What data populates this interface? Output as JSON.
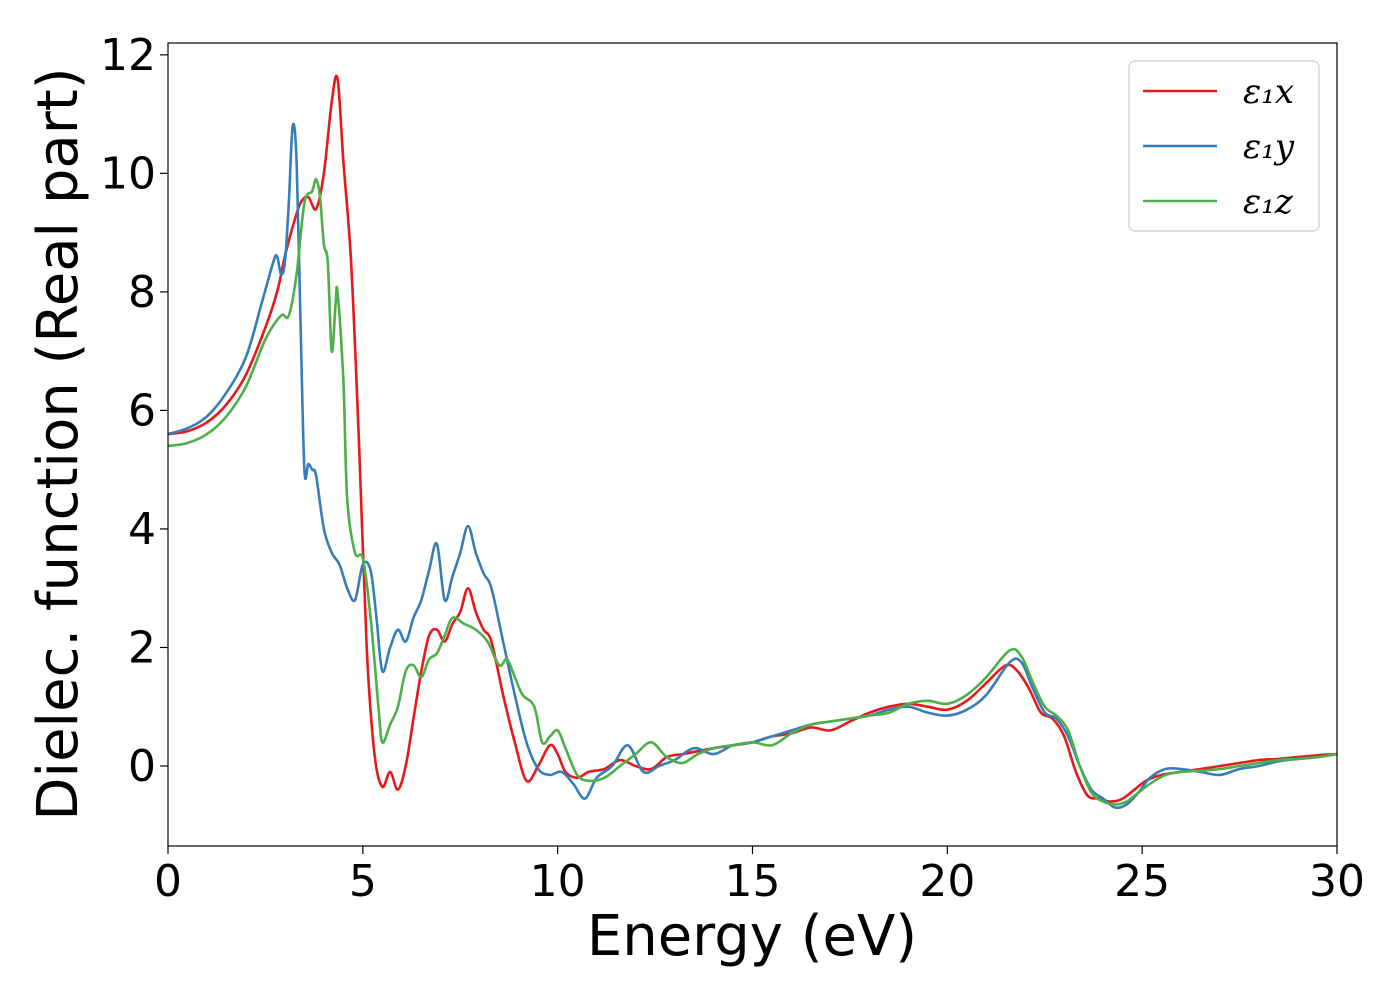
{
  "chart_data": {
    "type": "line",
    "xlabel": "Energy (eV)",
    "ylabel": "Dielec. function (Real part)",
    "xlim": [
      0,
      30
    ],
    "ylim": [
      -1.35,
      12.2
    ],
    "xticks": [
      0,
      5,
      10,
      15,
      20,
      25,
      30
    ],
    "yticks": [
      0,
      2,
      4,
      6,
      8,
      10,
      12
    ],
    "grid": false,
    "legend_position": "top-right",
    "series": [
      {
        "name": "ε₁x",
        "color": "#e41a1c",
        "x": [
          0,
          0.5,
          1,
          1.5,
          2,
          2.5,
          2.8,
          3.0,
          3.2,
          3.4,
          3.6,
          3.8,
          4.0,
          4.2,
          4.35,
          4.5,
          4.7,
          4.9,
          5.1,
          5.3,
          5.5,
          5.7,
          5.9,
          6.1,
          6.3,
          6.5,
          6.7,
          6.9,
          7.1,
          7.3,
          7.5,
          7.7,
          7.9,
          8.1,
          8.3,
          8.6,
          8.9,
          9.2,
          9.5,
          9.8,
          10.0,
          10.2,
          10.5,
          10.8,
          11.2,
          11.6,
          12.0,
          12.4,
          12.8,
          13.2,
          13.6,
          14.0,
          14.5,
          15.0,
          15.5,
          16.0,
          16.5,
          17.0,
          17.5,
          18.0,
          18.5,
          19.0,
          19.5,
          20.0,
          20.5,
          21.0,
          21.5,
          21.8,
          22.1,
          22.4,
          22.7,
          23.0,
          23.3,
          23.6,
          23.9,
          24.2,
          24.5,
          24.8,
          25.1,
          25.5,
          26.0,
          26.5,
          27.0,
          27.5,
          28.0,
          28.5,
          29.0,
          29.5,
          30.0
        ],
        "y": [
          5.6,
          5.65,
          5.8,
          6.1,
          6.6,
          7.4,
          8.0,
          8.6,
          9.1,
          9.5,
          9.6,
          9.4,
          10.0,
          11.2,
          11.6,
          10.2,
          8.5,
          5.5,
          2.0,
          0.2,
          -0.35,
          -0.1,
          -0.4,
          0.0,
          0.8,
          1.6,
          2.2,
          2.3,
          2.1,
          2.4,
          2.6,
          3.0,
          2.6,
          2.3,
          2.1,
          1.2,
          0.4,
          -0.25,
          0.0,
          0.35,
          0.2,
          -0.1,
          -0.2,
          -0.1,
          -0.05,
          0.1,
          0.0,
          -0.05,
          0.15,
          0.2,
          0.25,
          0.3,
          0.35,
          0.4,
          0.5,
          0.55,
          0.65,
          0.6,
          0.75,
          0.9,
          1.0,
          1.05,
          1.0,
          0.95,
          1.1,
          1.4,
          1.7,
          1.6,
          1.3,
          0.9,
          0.8,
          0.5,
          -0.1,
          -0.5,
          -0.55,
          -0.6,
          -0.55,
          -0.4,
          -0.25,
          -0.15,
          -0.1,
          -0.05,
          0.0,
          0.05,
          0.1,
          0.12,
          0.15,
          0.18,
          0.2
        ]
      },
      {
        "name": "ε₁y",
        "color": "#377eb8",
        "x": [
          0,
          0.5,
          1,
          1.5,
          2,
          2.4,
          2.7,
          2.8,
          2.9,
          3.0,
          3.1,
          3.2,
          3.3,
          3.4,
          3.5,
          3.6,
          3.7,
          3.8,
          4.0,
          4.2,
          4.4,
          4.6,
          4.8,
          5.0,
          5.2,
          5.35,
          5.5,
          5.7,
          5.9,
          6.1,
          6.3,
          6.5,
          6.7,
          6.9,
          7.1,
          7.3,
          7.5,
          7.7,
          7.9,
          8.1,
          8.3,
          8.6,
          8.9,
          9.2,
          9.5,
          9.8,
          10.1,
          10.4,
          10.7,
          11.0,
          11.4,
          11.8,
          12.2,
          12.6,
          13.0,
          13.5,
          14.0,
          14.5,
          15.0,
          15.5,
          16.0,
          16.5,
          17.0,
          17.5,
          18.0,
          18.5,
          19.0,
          19.5,
          20.0,
          20.5,
          21.0,
          21.6,
          21.9,
          22.2,
          22.5,
          22.8,
          23.1,
          23.4,
          23.7,
          24.0,
          24.3,
          24.6,
          24.9,
          25.2,
          25.6,
          26.0,
          26.5,
          27.0,
          27.5,
          28.0,
          28.5,
          29.0,
          29.5,
          30.0
        ],
        "y": [
          5.6,
          5.7,
          5.9,
          6.3,
          6.9,
          7.8,
          8.5,
          8.6,
          8.3,
          8.5,
          9.5,
          10.8,
          10.2,
          7.5,
          5.0,
          5.1,
          5.0,
          4.9,
          4.0,
          3.6,
          3.4,
          3.0,
          2.8,
          3.4,
          3.3,
          2.5,
          1.6,
          2.0,
          2.3,
          2.1,
          2.5,
          2.8,
          3.3,
          3.75,
          2.8,
          3.2,
          3.6,
          4.05,
          3.6,
          3.25,
          3.0,
          2.1,
          1.2,
          0.4,
          -0.05,
          -0.15,
          -0.1,
          -0.3,
          -0.55,
          -0.2,
          0.0,
          0.35,
          -0.1,
          0.0,
          0.1,
          0.3,
          0.2,
          0.35,
          0.4,
          0.5,
          0.6,
          0.7,
          0.75,
          0.8,
          0.85,
          0.95,
          1.0,
          0.9,
          0.85,
          0.95,
          1.2,
          1.75,
          1.75,
          1.3,
          0.9,
          0.8,
          0.5,
          0.0,
          -0.4,
          -0.55,
          -0.7,
          -0.65,
          -0.45,
          -0.2,
          -0.05,
          -0.05,
          -0.1,
          -0.15,
          -0.05,
          0.0,
          0.08,
          0.12,
          0.15,
          0.2
        ]
      },
      {
        "name": "ε₁z",
        "color": "#4daf4a",
        "x": [
          0,
          0.5,
          1,
          1.5,
          2,
          2.5,
          2.9,
          3.1,
          3.3,
          3.5,
          3.7,
          3.8,
          3.9,
          4.0,
          4.1,
          4.2,
          4.3,
          4.35,
          4.5,
          4.6,
          4.8,
          5.0,
          5.2,
          5.4,
          5.5,
          5.7,
          5.9,
          6.1,
          6.3,
          6.5,
          6.7,
          6.9,
          7.1,
          7.3,
          7.6,
          7.9,
          8.2,
          8.5,
          8.7,
          8.9,
          9.1,
          9.4,
          9.6,
          9.8,
          10.0,
          10.2,
          10.5,
          10.8,
          11.2,
          11.6,
          12.0,
          12.4,
          12.8,
          13.2,
          13.6,
          14.0,
          14.5,
          15.0,
          15.5,
          16.0,
          16.5,
          17.0,
          17.5,
          18.0,
          18.5,
          19.0,
          19.5,
          20.0,
          20.5,
          21.0,
          21.6,
          21.9,
          22.2,
          22.5,
          22.8,
          23.1,
          23.4,
          23.7,
          24.0,
          24.3,
          24.6,
          24.9,
          25.2,
          25.6,
          26.0,
          26.5,
          27.0,
          27.5,
          28.0,
          28.5,
          29.0,
          29.5,
          30.0
        ],
        "y": [
          5.4,
          5.45,
          5.6,
          5.9,
          6.4,
          7.2,
          7.6,
          7.6,
          8.3,
          9.5,
          9.7,
          9.9,
          9.6,
          8.8,
          8.5,
          7.0,
          7.8,
          8.0,
          6.5,
          4.5,
          3.6,
          3.5,
          2.5,
          1.0,
          0.4,
          0.7,
          1.0,
          1.6,
          1.7,
          1.5,
          1.8,
          1.9,
          2.2,
          2.5,
          2.4,
          2.3,
          2.1,
          1.7,
          1.8,
          1.5,
          1.2,
          1.0,
          0.4,
          0.5,
          0.6,
          0.3,
          -0.15,
          -0.25,
          -0.2,
          0.0,
          0.2,
          0.4,
          0.15,
          0.05,
          0.2,
          0.3,
          0.35,
          0.4,
          0.35,
          0.55,
          0.7,
          0.75,
          0.8,
          0.85,
          0.9,
          1.05,
          1.1,
          1.05,
          1.2,
          1.5,
          1.95,
          1.85,
          1.4,
          1.0,
          0.85,
          0.6,
          0.0,
          -0.45,
          -0.6,
          -0.65,
          -0.6,
          -0.45,
          -0.3,
          -0.15,
          -0.1,
          -0.08,
          -0.05,
          0.0,
          0.05,
          0.1,
          0.12,
          0.15,
          0.2
        ]
      }
    ]
  }
}
